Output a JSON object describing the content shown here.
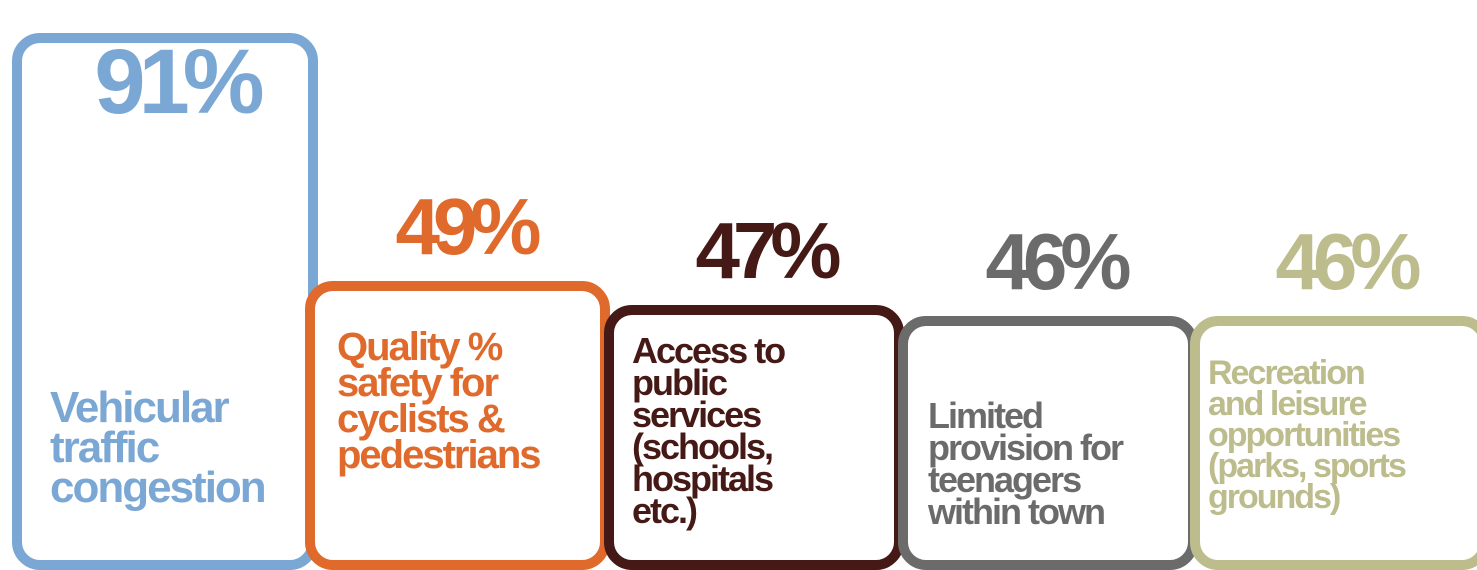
{
  "chart_data": {
    "type": "bar",
    "title": "",
    "xlabel": "",
    "ylabel": "",
    "ylim": [
      0,
      100
    ],
    "categories": [
      "Vehicular\ntraffic\ncongestion",
      "Quality %\nsafety for\ncyclists &\npedestrians",
      "Access to\npublic\nservices\n(schools,\nhospitals\netc.)",
      "Limited\nprovision for\nteenagers\nwithin town",
      "Recreation\nand leisure\nopportunities\n(parks, sports\ngrounds)"
    ],
    "values": [
      91,
      49,
      47,
      46,
      46
    ],
    "value_labels": [
      "91%",
      "49%",
      "47%",
      "46%",
      "46%"
    ],
    "colors": [
      "#7ba7d4",
      "#df6a2b",
      "#451915",
      "#6b6b6b",
      "#bdbc8d"
    ],
    "grid": false,
    "legend": "none"
  }
}
